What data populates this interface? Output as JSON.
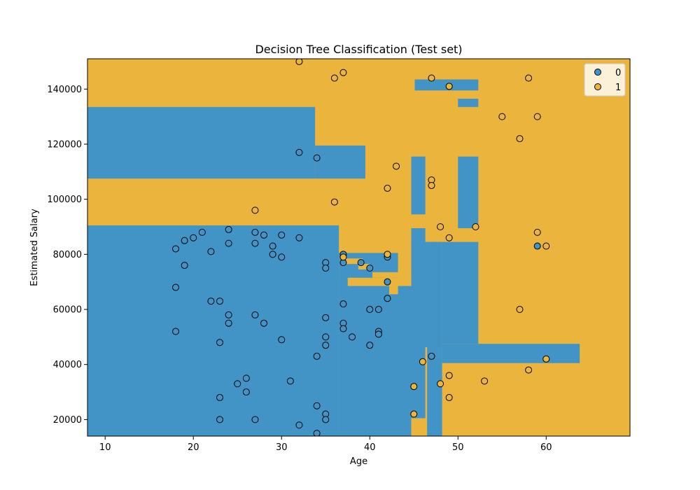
{
  "chart_data": {
    "type": "scatter",
    "title": "Decision Tree Classification (Test set)",
    "xlabel": "Age",
    "ylabel": "Estimated Salary",
    "xlim": [
      8.0,
      69.5
    ],
    "ylim": [
      14000,
      151000
    ],
    "xticks": [
      10,
      20,
      30,
      40,
      50,
      60
    ],
    "yticks": [
      20000,
      40000,
      60000,
      80000,
      100000,
      120000,
      140000
    ],
    "xtick_labels": [
      "10",
      "20",
      "30",
      "40",
      "50",
      "60"
    ],
    "ytick_labels": [
      "20000",
      "40000",
      "60000",
      "80000",
      "100000",
      "120000",
      "140000"
    ],
    "grid": false,
    "legend_position": "top-right",
    "colors": {
      "class0": "#4294c6",
      "class1": "#ebb53d"
    },
    "background_class": 1,
    "regions_class0": [
      [
        8,
        133.5,
        107.5,
        33.8
      ],
      [
        33.8,
        119.5,
        107.5,
        39.5
      ],
      [
        8,
        90.5,
        14,
        36.5
      ],
      [
        36.5,
        80.5,
        14,
        43.2
      ],
      [
        36.5,
        69.5,
        14,
        44.7
      ],
      [
        44.7,
        89.5,
        20.5,
        46.3
      ],
      [
        44.7,
        84.5,
        46.3,
        48.2
      ],
      [
        46.5,
        84.5,
        14,
        48.2
      ],
      [
        48.2,
        84.5,
        47.5,
        52.3
      ],
      [
        48.2,
        47.5,
        40.5,
        63.8
      ],
      [
        44.7,
        115.5,
        94.5,
        46.3
      ],
      [
        50,
        115.5,
        89.5,
        52.3
      ],
      [
        45.1,
        143.5,
        139.5,
        52.3
      ],
      [
        50,
        136.5,
        133.5,
        52.3
      ]
    ],
    "regions_class1": [
      [
        37.2,
        78.5,
        76.5,
        39.2
      ],
      [
        38.7,
        76.5,
        74.5,
        40
      ],
      [
        40.3,
        73.5,
        71.5,
        44.7
      ],
      [
        37.5,
        71.5,
        68.5,
        44.7
      ],
      [
        42.2,
        69.5,
        65.5,
        43.2
      ]
    ],
    "series": [
      {
        "name": "0",
        "x": [
          18,
          19,
          20,
          19,
          18,
          18,
          21,
          22,
          22,
          23,
          23,
          24,
          24,
          24,
          24,
          23,
          23,
          25,
          26,
          26,
          27,
          27,
          27,
          28,
          27,
          29,
          28,
          29,
          30,
          30,
          30,
          31,
          32,
          32,
          34,
          34,
          35,
          35,
          35,
          35,
          35,
          35,
          35,
          34,
          37,
          37,
          37,
          37,
          37,
          38,
          39,
          40,
          40,
          40,
          41,
          41,
          41,
          42,
          42,
          42,
          47,
          59,
          32,
          34
        ],
        "y": [
          82000,
          85000,
          86000,
          76000,
          68000,
          52000,
          88000,
          81000,
          63000,
          63000,
          48000,
          89000,
          84000,
          58000,
          55000,
          28000,
          20000,
          33000,
          35000,
          30000,
          88000,
          84000,
          58000,
          87000,
          20000,
          83000,
          55000,
          80000,
          87000,
          79000,
          49000,
          34000,
          86000,
          18000,
          43000,
          25000,
          77000,
          75000,
          57000,
          50000,
          47000,
          22000,
          20000,
          15000,
          80000,
          62000,
          55000,
          53000,
          77000,
          50000,
          77000,
          75000,
          60000,
          47000,
          60000,
          52000,
          51000,
          79000,
          70000,
          64000,
          43000,
          83000,
          117000,
          115000
        ]
      },
      {
        "name": "1",
        "x": [
          32,
          36,
          37,
          47,
          49,
          58,
          55,
          59,
          57,
          43,
          47,
          47,
          42,
          36,
          27,
          48,
          52,
          49,
          59,
          60,
          37,
          42,
          57,
          46,
          45,
          49,
          48,
          49,
          53,
          58,
          60,
          45
        ],
        "y": [
          150000,
          144000,
          146000,
          144000,
          141000,
          144000,
          130000,
          130000,
          122000,
          112000,
          107000,
          105000,
          104000,
          99000,
          96000,
          90000,
          90000,
          86000,
          88000,
          83000,
          79000,
          80000,
          60000,
          41000,
          32000,
          36000,
          33000,
          28000,
          34000,
          38000,
          42000,
          22000
        ]
      }
    ]
  }
}
